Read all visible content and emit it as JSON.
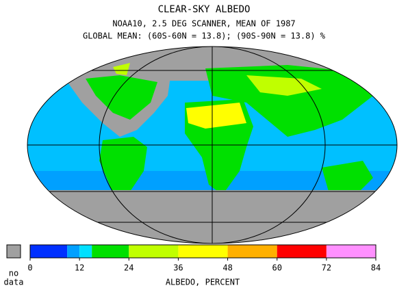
{
  "title": "CLEAR-SKY ALBEDO",
  "subtitle": "NOAA10,  2.5 DEG SCANNER,  MEAN OF 1987",
  "global_mean": "GLOBAL MEAN: (60S-60N = 13.8); (90S-90N = 13.8) %",
  "colorbar": {
    "label": "ALBEDO, PERCENT",
    "no_data_label": [
      "no",
      "data"
    ],
    "no_data_color": "#a0a0a0",
    "min": 0,
    "max": 84,
    "ticks": [
      0,
      12,
      24,
      36,
      48,
      60,
      72,
      84
    ],
    "segments": [
      {
        "from": 0,
        "to": 9,
        "color": "#0030ff"
      },
      {
        "from": 9,
        "to": 12,
        "color": "#00a0ff"
      },
      {
        "from": 12,
        "to": 15,
        "color": "#00e0ff"
      },
      {
        "from": 15,
        "to": 24,
        "color": "#00e000"
      },
      {
        "from": 24,
        "to": 36,
        "color": "#c0ff00"
      },
      {
        "from": 36,
        "to": 48,
        "color": "#ffff00"
      },
      {
        "from": 48,
        "to": 60,
        "color": "#ffb000"
      },
      {
        "from": 60,
        "to": 72,
        "color": "#ff0000"
      },
      {
        "from": 72,
        "to": 84,
        "color": "#ff90ff"
      }
    ]
  }
}
